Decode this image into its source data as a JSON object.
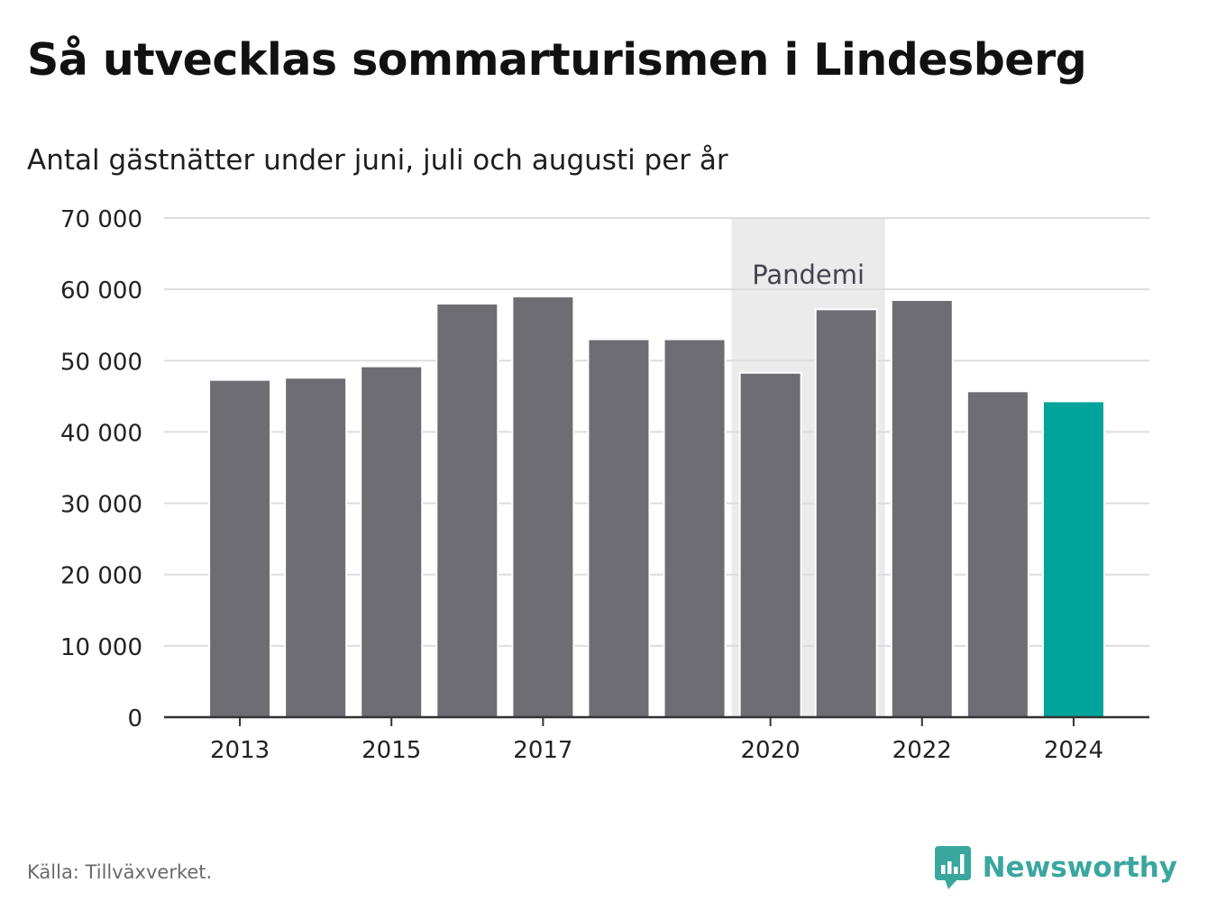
{
  "header": {
    "title": "Så utvecklas sommarturismen i Lindesberg",
    "subtitle": "Antal gästnätter under juni, juli och augusti per år"
  },
  "footer": {
    "source": "Källa: Tillväxverket.",
    "brand": "Newsworthy",
    "brand_icon": "bar-chart-speech-bubble-icon"
  },
  "colors": {
    "bar": "#6e6d73",
    "highlight": "#00a49a",
    "shade": "#ebebeb",
    "grid": "#dddddd",
    "axis": "#333333"
  },
  "chart_data": {
    "type": "bar",
    "title": "Så utvecklas sommarturismen i Lindesberg",
    "subtitle": "Antal gästnätter under juni, juli och augusti per år",
    "categories": [
      "2013",
      "2014",
      "2015",
      "2016",
      "2017",
      "2018",
      "2019",
      "2020",
      "2021",
      "2022",
      "2023",
      "2024"
    ],
    "values": [
      47300,
      47600,
      49200,
      58000,
      59000,
      53000,
      53000,
      48300,
      57200,
      58500,
      45700,
      44300
    ],
    "highlight": "2024",
    "x_tick_labels": [
      "2013",
      "2015",
      "2017",
      "2020",
      "2022",
      "2024"
    ],
    "y_ticks": [
      0,
      10000,
      20000,
      30000,
      40000,
      50000,
      60000,
      70000
    ],
    "y_tick_labels": [
      "0",
      "10 000",
      "20 000",
      "30 000",
      "40 000",
      "50 000",
      "60 000",
      "70 000"
    ],
    "ylim": [
      0,
      70000
    ],
    "grid": true,
    "legend": "none",
    "annotations": [
      {
        "label": "Pandemi",
        "x_start": "2020",
        "x_end": "2021"
      }
    ]
  }
}
